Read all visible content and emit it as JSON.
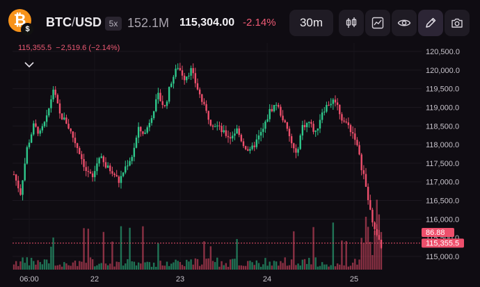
{
  "header": {
    "coin_icon": "bitcoin-icon",
    "base": "BTC",
    "quote": "USD",
    "leverage": "5x",
    "volume": "152.1M",
    "price": "115,304.00",
    "change": "-2.14%",
    "timeframe": "30m",
    "tools": [
      "candlestick-icon",
      "indicators-icon",
      "eye-icon",
      "pencil-icon",
      "camera-icon"
    ]
  },
  "legend": {
    "ohlc_text": "115,355.5  − 2,519.6 (−2.14%)"
  },
  "markers": {
    "volume_label": "86.88",
    "price_label": "115,355.5"
  },
  "colors": {
    "up": "#2fc98c",
    "down": "#ee4f6c",
    "price_line": "#ee4f6c",
    "background": "#0f0c12"
  },
  "chart_data": {
    "type": "candlestick",
    "ylim": [
      114900,
      120600
    ],
    "y_ticks": [
      "120,500.0",
      "120,000.0",
      "119,500.0",
      "119,000.0",
      "118,500.0",
      "118,000.0",
      "117,500.0",
      "117,000.0",
      "116,500.0",
      "116,000.0",
      "115,500.0",
      "115,000.0"
    ],
    "y_tick_values": [
      120500,
      120000,
      119500,
      119000,
      118500,
      118000,
      117500,
      117000,
      116500,
      116000,
      115500,
      115000
    ],
    "x_ticks": [
      "06:00",
      "22",
      "23",
      "24",
      "25"
    ],
    "current_price": 115355.5,
    "close_path": [
      [
        0,
        117200
      ],
      [
        3,
        116700
      ],
      [
        6,
        117900
      ],
      [
        9,
        118500
      ],
      [
        12,
        118300
      ],
      [
        15,
        118700
      ],
      [
        18,
        119500
      ],
      [
        21,
        118800
      ],
      [
        24,
        118600
      ],
      [
        27,
        118200
      ],
      [
        30,
        117800
      ],
      [
        33,
        117300
      ],
      [
        36,
        117100
      ],
      [
        39,
        117700
      ],
      [
        42,
        117400
      ],
      [
        45,
        117300
      ],
      [
        48,
        117000
      ],
      [
        51,
        117400
      ],
      [
        54,
        117700
      ],
      [
        57,
        118400
      ],
      [
        60,
        118300
      ],
      [
        63,
        118800
      ],
      [
        66,
        119300
      ],
      [
        69,
        119000
      ],
      [
        72,
        119700
      ],
      [
        75,
        120100
      ],
      [
        78,
        119800
      ],
      [
        81,
        120000
      ],
      [
        84,
        119500
      ],
      [
        87,
        119000
      ],
      [
        90,
        118600
      ],
      [
        93,
        118500
      ],
      [
        96,
        118300
      ],
      [
        99,
        118200
      ],
      [
        102,
        118400
      ],
      [
        105,
        118000
      ],
      [
        108,
        117800
      ],
      [
        111,
        118100
      ],
      [
        114,
        118400
      ],
      [
        117,
        118900
      ],
      [
        120,
        119100
      ],
      [
        123,
        118700
      ],
      [
        126,
        118200
      ],
      [
        129,
        117700
      ],
      [
        132,
        118500
      ],
      [
        135,
        118600
      ],
      [
        138,
        118300
      ],
      [
        141,
        118900
      ],
      [
        144,
        119100
      ],
      [
        147,
        119200
      ],
      [
        150,
        118700
      ],
      [
        153,
        118500
      ],
      [
        156,
        118200
      ],
      [
        159,
        117400
      ],
      [
        162,
        116600
      ],
      [
        165,
        115700
      ],
      [
        168,
        115300
      ]
    ]
  }
}
